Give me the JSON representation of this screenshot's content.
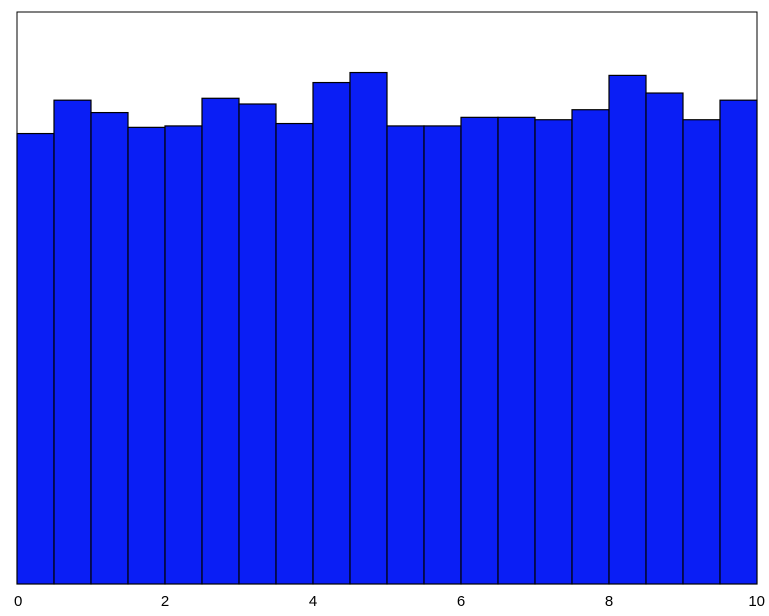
{
  "chart_data": {
    "type": "bar",
    "title": "",
    "xlabel": "",
    "ylabel": "",
    "xlim": [
      0,
      10
    ],
    "ylim": [
      0,
      1.2
    ],
    "bin_edges": [
      0,
      0.5,
      1.0,
      1.5,
      2.0,
      2.5,
      3.0,
      3.5,
      4.0,
      4.5,
      5.0,
      5.5,
      6.0,
      6.5,
      7.0,
      7.5,
      8.0,
      8.5,
      9.0,
      9.5,
      10.0
    ],
    "values": [
      0.945,
      1.015,
      0.989,
      0.958,
      0.961,
      1.019,
      1.007,
      0.966,
      1.052,
      1.073,
      0.961,
      0.961,
      0.979,
      0.979,
      0.974,
      0.995,
      1.067,
      1.03,
      0.974,
      1.015
    ],
    "x_ticks": [
      0,
      2,
      4,
      6,
      8,
      10
    ],
    "x_tick_labels": [
      "0",
      "2",
      "4",
      "6",
      "8",
      "10"
    ],
    "bar_color": "#0a1ef5",
    "edge_color": "#000000",
    "grid": false,
    "legend": "none"
  }
}
